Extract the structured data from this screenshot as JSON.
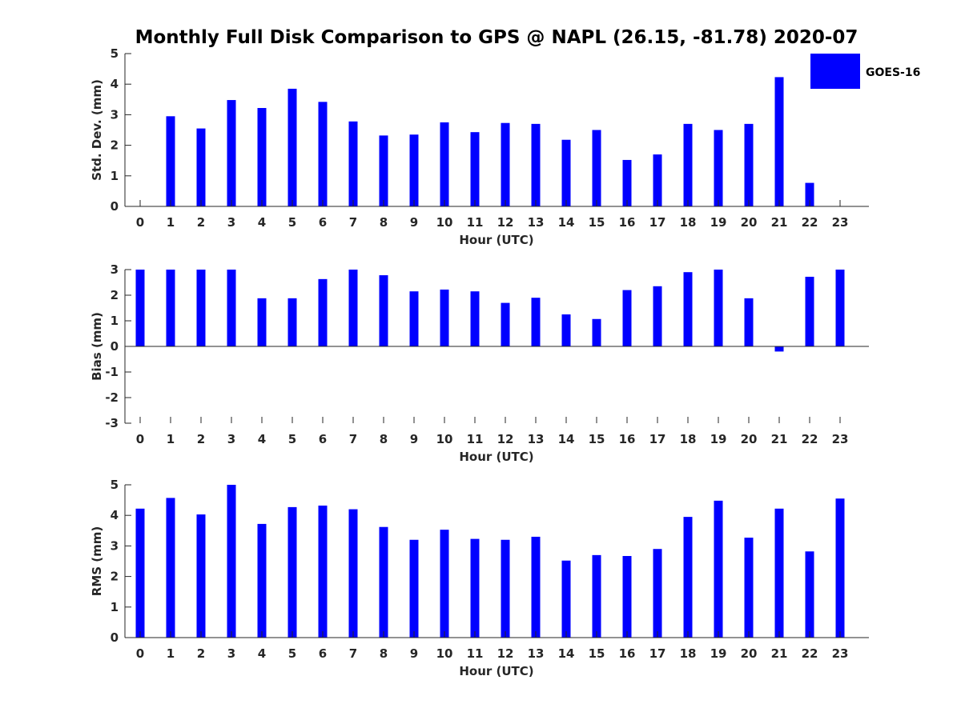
{
  "figure": {
    "title": "Monthly Full Disk Comparison to GPS @ NAPL (26.15, -81.78) 2020-07",
    "legend": {
      "label": "GOES-16",
      "color": "#0000ff",
      "placement": "top-right"
    }
  },
  "chart_data": [
    {
      "type": "bar",
      "name": "std-dev",
      "xlabel": "Hour (UTC)",
      "ylabel": "Std. Dev. (mm)",
      "ylim": [
        0,
        5
      ],
      "yticks": [
        0,
        1,
        2,
        3,
        4,
        5
      ],
      "categories": [
        "0",
        "1",
        "2",
        "3",
        "4",
        "5",
        "6",
        "7",
        "8",
        "9",
        "10",
        "11",
        "12",
        "13",
        "14",
        "15",
        "16",
        "17",
        "18",
        "19",
        "20",
        "21",
        "22",
        "23"
      ],
      "series": [
        {
          "color": "#0000ff",
          "values": [
            null,
            2.95,
            2.55,
            3.48,
            3.22,
            3.85,
            3.42,
            2.78,
            2.32,
            2.35,
            2.75,
            2.43,
            2.73,
            2.7,
            2.18,
            2.5,
            1.52,
            1.7,
            2.7,
            2.5,
            2.7,
            4.23,
            0.77,
            null
          ]
        }
      ],
      "grid": false
    },
    {
      "type": "bar",
      "name": "bias",
      "xlabel": "Hour (UTC)",
      "ylabel": "Bias (mm)",
      "ylim": [
        -3,
        3
      ],
      "yticks": [
        -3,
        -2,
        -1,
        0,
        1,
        2,
        3
      ],
      "categories": [
        "0",
        "1",
        "2",
        "3",
        "4",
        "5",
        "6",
        "7",
        "8",
        "9",
        "10",
        "11",
        "12",
        "13",
        "14",
        "15",
        "16",
        "17",
        "18",
        "19",
        "20",
        "21",
        "22",
        "23"
      ],
      "series": [
        {
          "color": "#0000ff",
          "values": [
            3.0,
            3.0,
            3.0,
            3.0,
            1.88,
            1.88,
            2.63,
            3.0,
            2.78,
            2.15,
            2.22,
            2.15,
            1.7,
            1.9,
            1.25,
            1.07,
            2.2,
            2.35,
            2.9,
            3.0,
            1.88,
            -0.2,
            2.72,
            3.0
          ]
        }
      ],
      "grid": false
    },
    {
      "type": "bar",
      "name": "rms",
      "xlabel": "Hour (UTC)",
      "ylabel": "RMS (mm)",
      "ylim": [
        0,
        5
      ],
      "yticks": [
        0,
        1,
        2,
        3,
        4,
        5
      ],
      "categories": [
        "0",
        "1",
        "2",
        "3",
        "4",
        "5",
        "6",
        "7",
        "8",
        "9",
        "10",
        "11",
        "12",
        "13",
        "14",
        "15",
        "16",
        "17",
        "18",
        "19",
        "20",
        "21",
        "22",
        "23"
      ],
      "series": [
        {
          "color": "#0000ff",
          "values": [
            4.22,
            4.57,
            4.03,
            5.0,
            3.72,
            4.27,
            4.32,
            4.2,
            3.62,
            3.2,
            3.53,
            3.23,
            3.2,
            3.3,
            2.52,
            2.7,
            2.67,
            2.9,
            3.95,
            4.48,
            3.27,
            4.22,
            2.82,
            4.55
          ]
        }
      ],
      "grid": false
    }
  ]
}
